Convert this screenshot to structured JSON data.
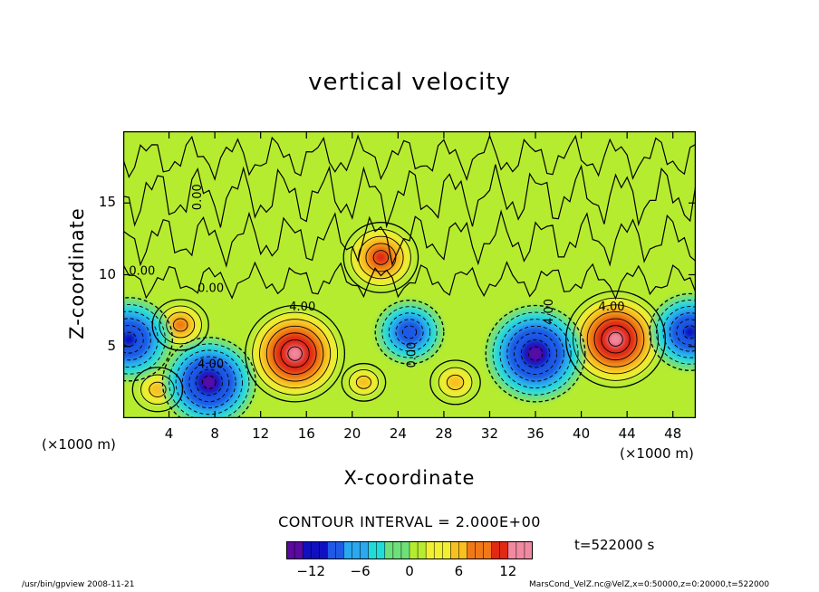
{
  "chart_data": {
    "type": "heatmap",
    "title": "vertical velocity",
    "xlabel": "X-coordinate",
    "ylabel": "Z-coordinate",
    "x_unit_label": "(×1000 m)",
    "x_ticks": [
      "4",
      "8",
      "12",
      "16",
      "20",
      "24",
      "28",
      "32",
      "36",
      "40",
      "44",
      "48"
    ],
    "y_ticks": [
      "5",
      "10",
      "15"
    ],
    "xlim": [
      0,
      50
    ],
    "ylim": [
      0,
      20
    ],
    "contour_labels": [
      "0.00",
      "0.00",
      "0.00",
      "4.00",
      "4.00",
      "4.00",
      "4.00",
      "0.00"
    ],
    "contour_interval": "CONTOUR INTERVAL = 2.000E+00",
    "time_label": "t=522000  s",
    "colorbar": {
      "range": [
        -15,
        15
      ],
      "tick_labels": [
        "−12",
        "−6",
        "0",
        "6",
        "12"
      ],
      "tick_values": [
        -12,
        -6,
        0,
        6,
        12
      ],
      "colors": [
        "#5a0aa0",
        "#1010c0",
        "#1f5ae6",
        "#2aa8f0",
        "#20dcd8",
        "#6ee07a",
        "#b6ec30",
        "#f0f030",
        "#f8c020",
        "#f07818",
        "#e02a12",
        "#f08aa0"
      ]
    },
    "features": [
      {
        "x": 15,
        "z": 4.5,
        "value": 12,
        "sign": "up"
      },
      {
        "x": 43,
        "z": 5.5,
        "value": 12,
        "sign": "up"
      },
      {
        "x": 5,
        "z": 6.5,
        "value": 5,
        "sign": "up"
      },
      {
        "x": 3,
        "z": 2.0,
        "value": 4,
        "sign": "up"
      },
      {
        "x": 21,
        "z": 2.5,
        "value": 3,
        "sign": "up"
      },
      {
        "x": 29,
        "z": 2.5,
        "value": 4,
        "sign": "up"
      },
      {
        "x": 22.5,
        "z": 11.2,
        "value": 8,
        "sign": "up"
      },
      {
        "x": 0.5,
        "z": 5.5,
        "value": -10,
        "sign": "down"
      },
      {
        "x": 7.5,
        "z": 2.5,
        "value": -11,
        "sign": "down"
      },
      {
        "x": 25,
        "z": 6,
        "value": -7,
        "sign": "down"
      },
      {
        "x": 36,
        "z": 4.5,
        "value": -12,
        "sign": "down"
      },
      {
        "x": 49.5,
        "z": 6,
        "value": -9,
        "sign": "down"
      }
    ]
  },
  "footer": {
    "left": "/usr/bin/gpview   2008-11-21",
    "right": "MarsCond_VelZ.nc@VelZ,x=0:50000,z=0:20000,t=522000"
  }
}
